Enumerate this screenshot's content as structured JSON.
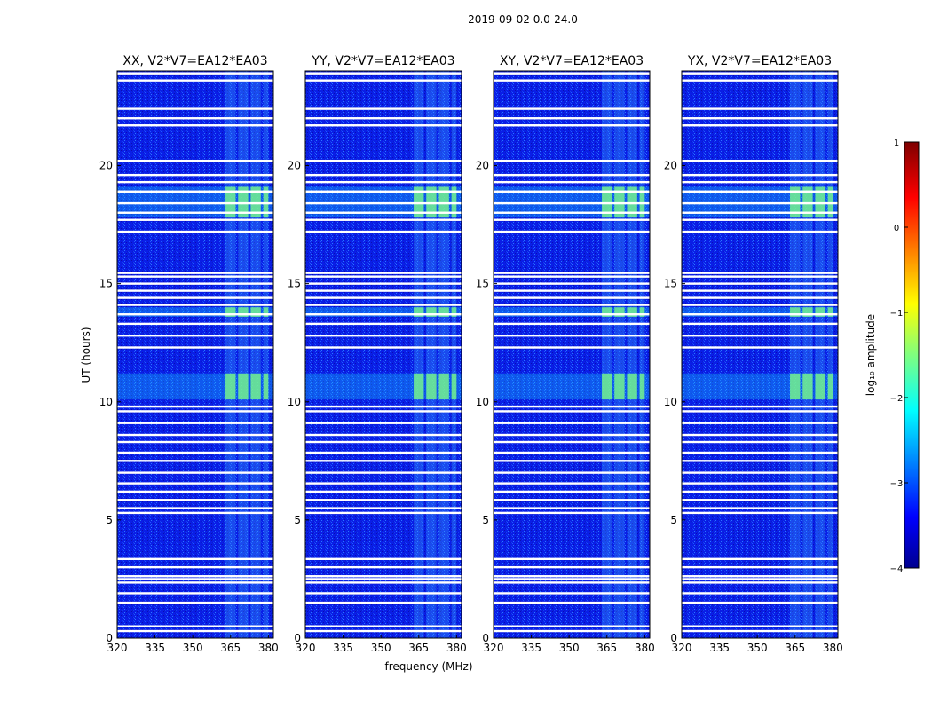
{
  "chart_data": {
    "type": "heatmap",
    "suptitle": "2019-09-02 0.0-24.0",
    "xlabel": "frequency (MHz)",
    "ylabel": "UT (hours)",
    "xlim": [
      320,
      382
    ],
    "ylim": [
      0,
      24
    ],
    "xticks": [
      320,
      335,
      350,
      365,
      380
    ],
    "yticks": [
      0,
      5,
      10,
      15,
      20
    ],
    "panels": [
      {
        "title": "XX, V2*V7=EA12*EA03",
        "pol": "XX"
      },
      {
        "title": "YY, V2*V7=EA12*EA03",
        "pol": "YY"
      },
      {
        "title": "XY, V2*V7=EA12*EA03",
        "pol": "XY"
      },
      {
        "title": "YX, V2*V7=EA12*EA03",
        "pol": "YX"
      }
    ],
    "colorbar": {
      "label": "log₁₀ amplitude",
      "range": [
        -4,
        1
      ],
      "ticks": [
        1,
        0,
        -1,
        -2,
        -3,
        -4
      ],
      "tick_labels": [
        "1",
        "0",
        "−1",
        "−2",
        "−3",
        "−4"
      ],
      "colormap": "jet"
    },
    "rfi_band_mhz": [
      363,
      380
    ],
    "rfi_subbands_mhz": [
      [
        363,
        367
      ],
      [
        368,
        372
      ],
      [
        373,
        377
      ],
      [
        378,
        380
      ]
    ],
    "flagged_ut_hours": [
      0.3,
      0.5,
      1.5,
      1.9,
      2.35,
      2.5,
      2.62,
      3.0,
      3.35,
      5.3,
      5.5,
      5.85,
      6.2,
      6.55,
      7.0,
      7.5,
      7.85,
      8.3,
      8.6,
      9.1,
      9.6,
      9.8,
      12.3,
      12.8,
      13.3,
      13.7,
      14.1,
      14.4,
      14.7,
      15.0,
      15.3,
      15.45,
      17.2,
      17.7,
      18.0,
      18.4,
      18.9,
      19.3,
      19.6,
      20.2,
      21.7,
      22.0,
      22.4,
      23.6,
      23.9
    ],
    "high_amplitude_ut_ranges": [
      [
        17.8,
        19.1
      ],
      [
        10.1,
        11.2
      ],
      [
        13.6,
        14.0
      ]
    ]
  }
}
